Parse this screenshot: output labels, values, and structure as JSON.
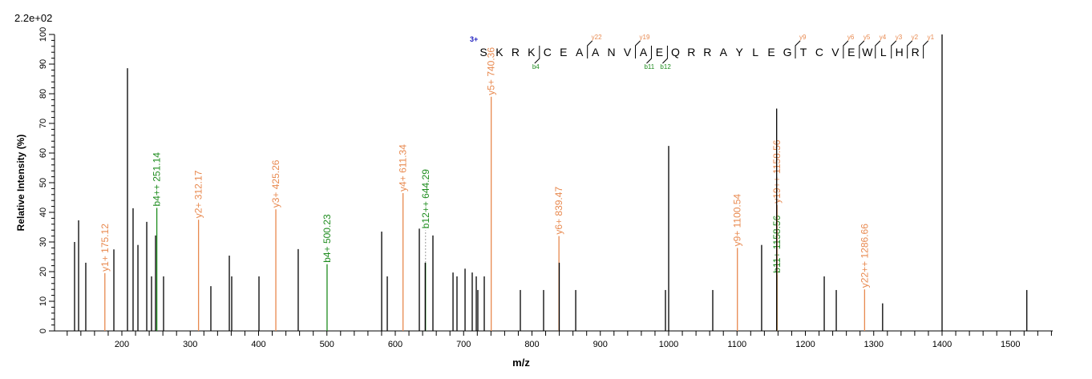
{
  "chart_data": {
    "type": "bar",
    "max_intensity_label": "2.2e+02",
    "xlabel": "m/z",
    "ylabel": "Relative  Intensity (%)",
    "xlim": [
      101,
      1562
    ],
    "ylim": [
      0,
      100
    ],
    "xticks": [
      200,
      300,
      400,
      500,
      600,
      700,
      800,
      900,
      1000,
      1100,
      1200,
      1300,
      1400,
      1500
    ],
    "yticks": [
      0,
      10,
      20,
      30,
      40,
      50,
      60,
      70,
      80,
      90,
      100
    ],
    "grid": false,
    "colors": {
      "peak": "#000000",
      "y_ion": "#E8894F",
      "b_ion": "#1E8C1E",
      "charge": "#2020C0"
    },
    "peaks": [
      {
        "mz": 130.8,
        "intensity": 30
      },
      {
        "mz": 136.7,
        "intensity": 37.3
      },
      {
        "mz": 147.2,
        "intensity": 23
      },
      {
        "mz": 188.3,
        "intensity": 27.5
      },
      {
        "mz": 208.2,
        "intensity": 88.6
      },
      {
        "mz": 216.4,
        "intensity": 41.4
      },
      {
        "mz": 223.5,
        "intensity": 29
      },
      {
        "mz": 236.4,
        "intensity": 36.8
      },
      {
        "mz": 243.4,
        "intensity": 18.4
      },
      {
        "mz": 249.3,
        "intensity": 32.2
      },
      {
        "mz": 261,
        "intensity": 18.4
      },
      {
        "mz": 330.2,
        "intensity": 15.1
      },
      {
        "mz": 357.2,
        "intensity": 25.4
      },
      {
        "mz": 360.7,
        "intensity": 18.4
      },
      {
        "mz": 400.6,
        "intensity": 18.4
      },
      {
        "mz": 458,
        "intensity": 27.6
      },
      {
        "mz": 580.1,
        "intensity": 33.5
      },
      {
        "mz": 588.3,
        "intensity": 18.4
      },
      {
        "mz": 635.2,
        "intensity": 34.5
      },
      {
        "mz": 643.8,
        "intensity": 23
      },
      {
        "mz": 655.1,
        "intensity": 32.2
      },
      {
        "mz": 684.5,
        "intensity": 19.7
      },
      {
        "mz": 690.3,
        "intensity": 18.4
      },
      {
        "mz": 702.1,
        "intensity": 21
      },
      {
        "mz": 712.6,
        "intensity": 19.7
      },
      {
        "mz": 718.5,
        "intensity": 18.4
      },
      {
        "mz": 720.8,
        "intensity": 13.8
      },
      {
        "mz": 730.2,
        "intensity": 18.4
      },
      {
        "mz": 783,
        "intensity": 13.8
      },
      {
        "mz": 817,
        "intensity": 13.8
      },
      {
        "mz": 839.9,
        "intensity": 23
      },
      {
        "mz": 864,
        "intensity": 13.8
      },
      {
        "mz": 995.3,
        "intensity": 13.8
      },
      {
        "mz": 1000,
        "intensity": 62.4
      },
      {
        "mz": 1064.5,
        "intensity": 13.8
      },
      {
        "mz": 1136,
        "intensity": 29
      },
      {
        "mz": 1158,
        "intensity": 75
      },
      {
        "mz": 1227.6,
        "intensity": 18.4
      },
      {
        "mz": 1245.2,
        "intensity": 13.8
      },
      {
        "mz": 1313,
        "intensity": 9.3
      },
      {
        "mz": 1400,
        "intensity": 100
      },
      {
        "mz": 1524,
        "intensity": 13.8
      }
    ],
    "annotations": [
      {
        "label": "y1+ 175.12",
        "mz": 175.12,
        "intensity": 19.5,
        "ion": "y"
      },
      {
        "label": "b4++ 251.14",
        "mz": 251.14,
        "intensity": 41.5,
        "ion": "b"
      },
      {
        "label": "y2+ 312.17",
        "mz": 312.17,
        "intensity": 37.5,
        "ion": "y"
      },
      {
        "label": "y3+ 425.26",
        "mz": 425.26,
        "intensity": 41,
        "ion": "y"
      },
      {
        "label": "b4+ 500.23",
        "mz": 500.23,
        "intensity": 22.5,
        "ion": "b"
      },
      {
        "label": "y4+ 611.34",
        "mz": 611.34,
        "intensity": 46.5,
        "ion": "y"
      },
      {
        "label": "b12++ 644.29",
        "mz": 644.29,
        "intensity": 23,
        "label_at": 34,
        "ion": "b"
      },
      {
        "label": "y5+ 740.36",
        "mz": 740.36,
        "intensity": 79,
        "ion": "y"
      },
      {
        "label": "y6+ 839.47",
        "mz": 839.47,
        "intensity": 32,
        "ion": "y"
      },
      {
        "label": "y9+ 1100.54",
        "mz": 1100.54,
        "intensity": 28,
        "ion": "y"
      },
      {
        "label": "b11+ 1158.56",
        "mz": 1158.56,
        "intensity": 19,
        "ion": "b"
      },
      {
        "label": "y19++ 1158.56",
        "mz": 1158.56,
        "intensity": 42.5,
        "ion": "y"
      },
      {
        "label": "y22++ 1286.66",
        "mz": 1286.66,
        "intensity": 14,
        "ion": "y"
      }
    ],
    "peptide": {
      "charge": "3+",
      "sequence": [
        "S",
        "K",
        "R",
        "K",
        "C",
        "E",
        "A",
        "A",
        "N",
        "V",
        "A",
        "E",
        "Q",
        "R",
        "R",
        "A",
        "Y",
        "L",
        "E",
        "G",
        "T",
        "C",
        "V",
        "E",
        "W",
        "L",
        "H",
        "R"
      ],
      "y_ions": [
        {
          "label": "y22",
          "before": 6
        },
        {
          "label": "y19",
          "before": 9
        },
        {
          "label": "y9",
          "before": 19
        },
        {
          "label": "y6",
          "before": 22
        },
        {
          "label": "y5",
          "before": 23
        },
        {
          "label": "y4",
          "before": 24
        },
        {
          "label": "y3",
          "before": 25
        },
        {
          "label": "y2",
          "before": 26
        },
        {
          "label": "y1",
          "before": 27
        }
      ],
      "b_ions": [
        {
          "label": "b4",
          "after": 3
        },
        {
          "label": "b11",
          "after": 10
        },
        {
          "label": "b12",
          "after": 11
        }
      ]
    }
  }
}
